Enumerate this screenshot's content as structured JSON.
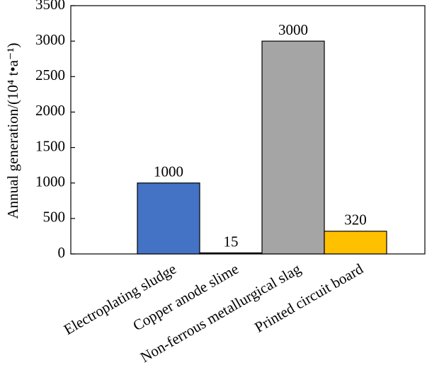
{
  "chart_data": {
    "type": "bar",
    "y_label": "Annual generation/(10⁴ t•a⁻¹)",
    "categories": [
      "Electroplating sludge",
      "Copper anode slime",
      "Non-ferrous metallurgical slag",
      "Printed circuit board"
    ],
    "values": [
      1000,
      15,
      3000,
      320
    ],
    "colors": [
      "#4472c4",
      "#1a1a1a",
      "#a5a5a5",
      "#ffc000"
    ],
    "ylim": [
      0,
      3500
    ],
    "yticks": [
      0,
      500,
      1000,
      1500,
      2000,
      2500,
      3000,
      3500
    ]
  }
}
